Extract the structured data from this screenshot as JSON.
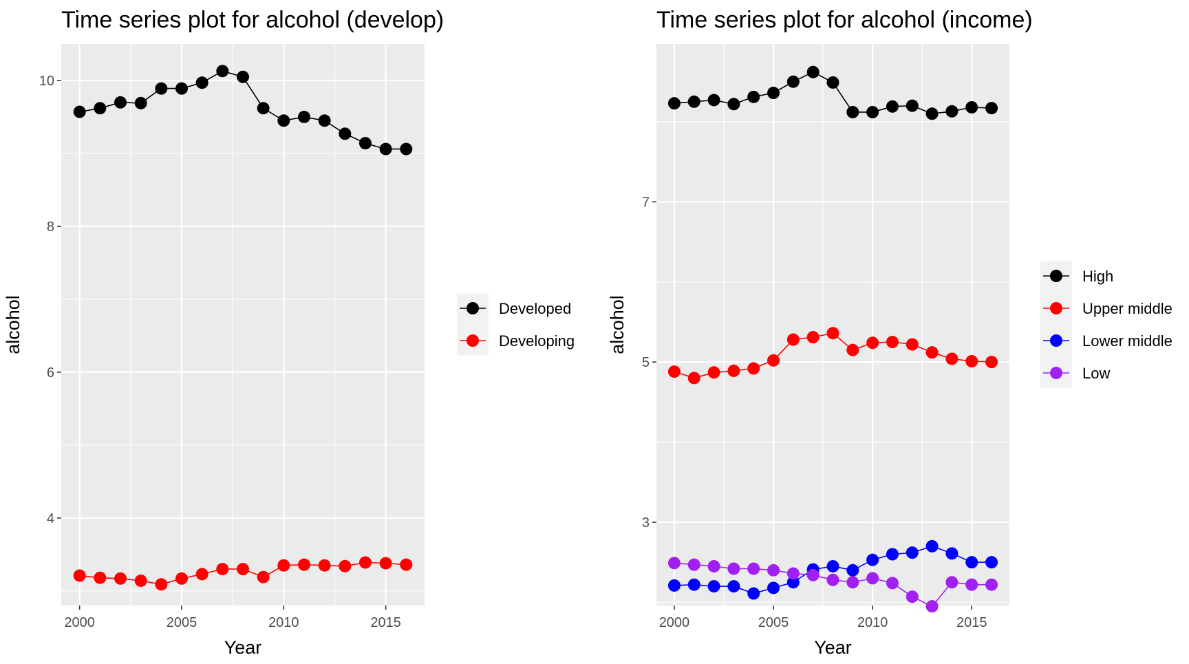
{
  "chart_data": [
    {
      "type": "line",
      "title": "Time series plot for alcohol (develop)",
      "xlabel": "Year",
      "ylabel": "alcohol",
      "x": [
        2000,
        2001,
        2002,
        2003,
        2004,
        2005,
        2006,
        2007,
        2008,
        2009,
        2010,
        2011,
        2012,
        2013,
        2014,
        2015,
        2016
      ],
      "xlim": [
        1999.1,
        2016.9
      ],
      "ylim": [
        2.8,
        10.5
      ],
      "x_ticks": [
        2000,
        2005,
        2010,
        2015
      ],
      "y_ticks": [
        4,
        6,
        8,
        10
      ],
      "grid": true,
      "legend_position": "right",
      "series": [
        {
          "name": "Developed",
          "color": "#000000",
          "values": [
            9.57,
            9.62,
            9.7,
            9.69,
            9.89,
            9.89,
            9.97,
            10.13,
            10.05,
            9.62,
            9.45,
            9.5,
            9.45,
            9.27,
            9.14,
            9.06,
            9.06
          ]
        },
        {
          "name": "Developing",
          "color": "#ff0000",
          "values": [
            3.21,
            3.18,
            3.17,
            3.14,
            3.09,
            3.17,
            3.23,
            3.3,
            3.3,
            3.19,
            3.35,
            3.36,
            3.35,
            3.34,
            3.39,
            3.38,
            3.36
          ]
        }
      ]
    },
    {
      "type": "line",
      "title": "Time series plot for alcohol (income)",
      "xlabel": "Year",
      "ylabel": "alcohol",
      "x": [
        2000,
        2001,
        2002,
        2003,
        2004,
        2005,
        2006,
        2007,
        2008,
        2009,
        2010,
        2011,
        2012,
        2013,
        2014,
        2015,
        2016
      ],
      "xlim": [
        1999.1,
        2016.9
      ],
      "ylim": [
        1.96,
        8.97
      ],
      "x_ticks": [
        2000,
        2005,
        2010,
        2015
      ],
      "y_ticks": [
        3,
        5,
        7
      ],
      "grid": true,
      "legend_position": "right",
      "series": [
        {
          "name": "High",
          "color": "#000000",
          "values": [
            8.23,
            8.25,
            8.27,
            8.22,
            8.31,
            8.36,
            8.5,
            8.62,
            8.49,
            8.12,
            8.12,
            8.19,
            8.2,
            8.1,
            8.13,
            8.18,
            8.17
          ]
        },
        {
          "name": "Upper middle",
          "color": "#ff0000",
          "values": [
            4.88,
            4.8,
            4.87,
            4.89,
            4.92,
            5.02,
            5.28,
            5.31,
            5.36,
            5.15,
            5.24,
            5.25,
            5.22,
            5.12,
            5.04,
            5.01,
            5.0
          ]
        },
        {
          "name": "Lower middle",
          "color": "#0000ff",
          "values": [
            2.21,
            2.22,
            2.2,
            2.2,
            2.11,
            2.18,
            2.25,
            2.41,
            2.45,
            2.4,
            2.53,
            2.6,
            2.62,
            2.7,
            2.61,
            2.5,
            2.5
          ]
        },
        {
          "name": "Low",
          "color": "#a020f0",
          "values": [
            2.49,
            2.47,
            2.45,
            2.42,
            2.42,
            2.4,
            2.36,
            2.34,
            2.28,
            2.25,
            2.3,
            2.24,
            2.07,
            1.95,
            2.25,
            2.22,
            2.22
          ]
        }
      ]
    }
  ]
}
